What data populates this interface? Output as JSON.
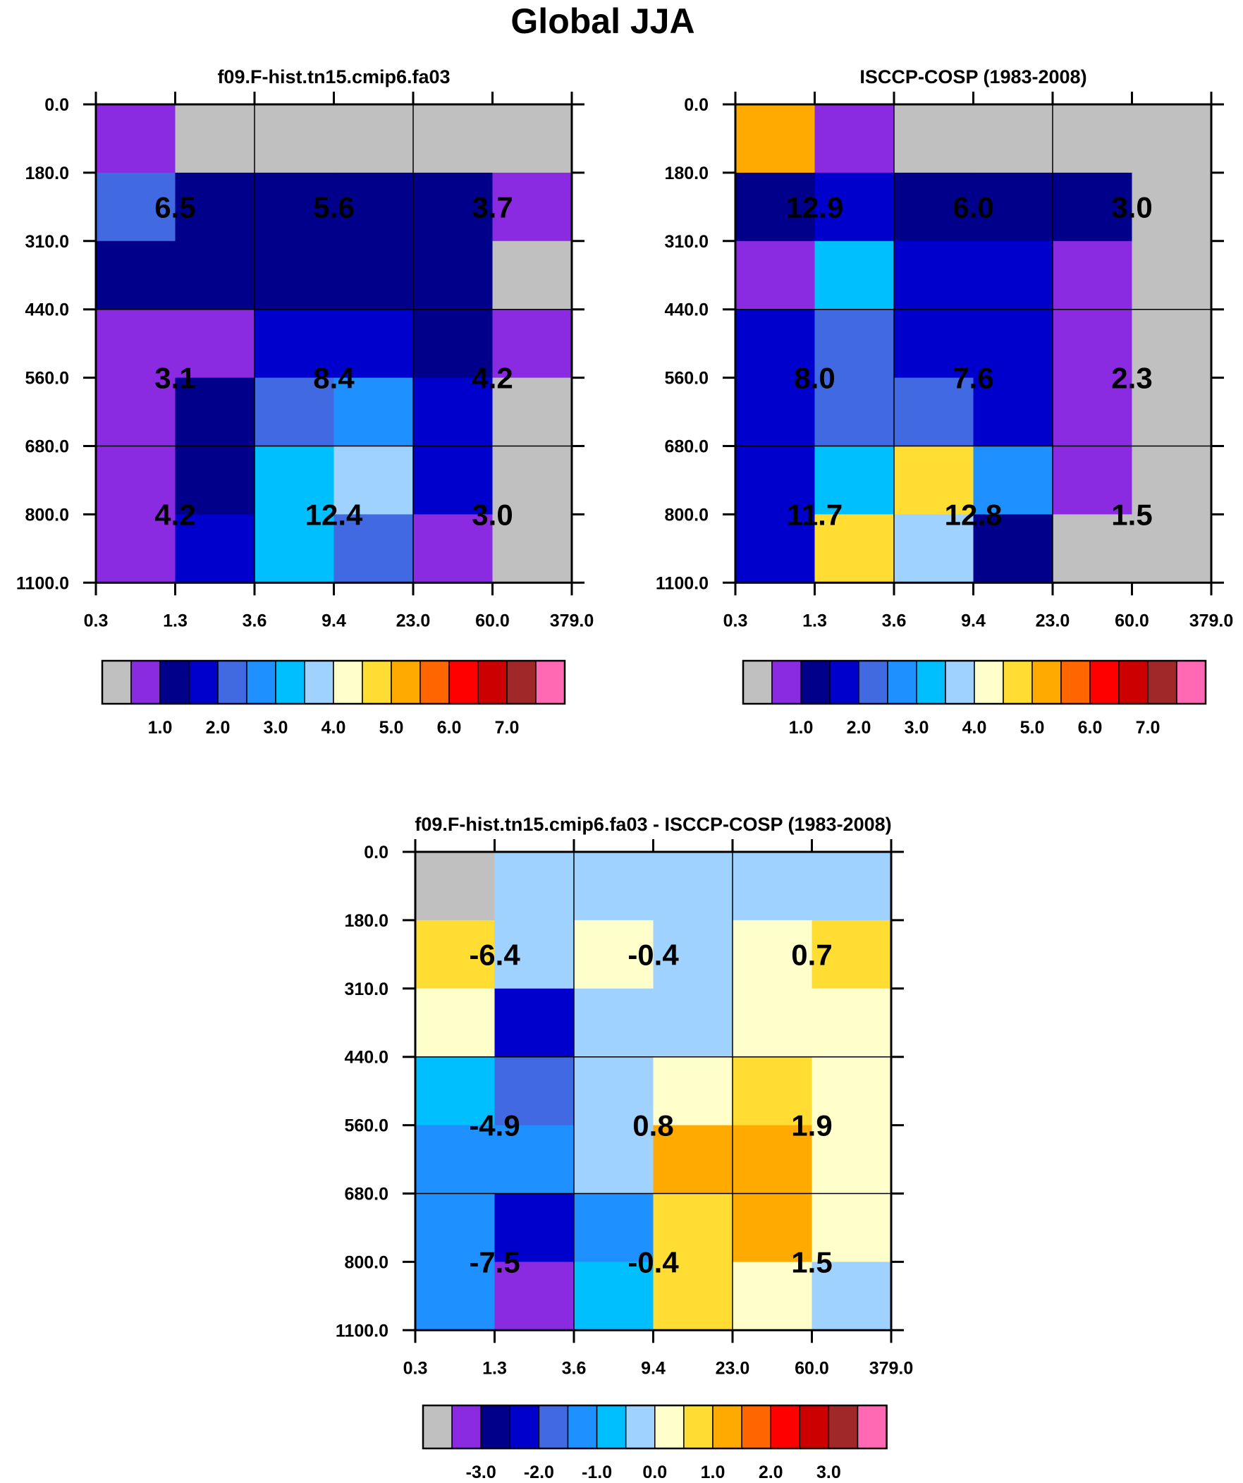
{
  "title": "Global JJA",
  "chart_data": [
    {
      "type": "heatmap",
      "title": "f09.F-hist.tn15.cmip6.fa03",
      "x_ticks": [
        "0.3",
        "1.3",
        "3.6",
        "9.4",
        "23.0",
        "60.0",
        "379.0"
      ],
      "y_ticks": [
        "0.0",
        "180.0",
        "310.0",
        "440.0",
        "560.0",
        "680.0",
        "800.0",
        "1100.0"
      ],
      "cells": [
        [
          1,
          0,
          0,
          0,
          0,
          0
        ],
        [
          4,
          2,
          2,
          2,
          2,
          1
        ],
        [
          2,
          2,
          2,
          2,
          2,
          0
        ],
        [
          1,
          1,
          3,
          3,
          2,
          1
        ],
        [
          1,
          2,
          4,
          5,
          3,
          0
        ],
        [
          1,
          2,
          6,
          7,
          3,
          0
        ],
        [
          1,
          3,
          6,
          4,
          1,
          0
        ]
      ],
      "block_values": [
        [
          "6.5",
          "5.6",
          "3.7"
        ],
        [
          "3.1",
          "8.4",
          "4.2"
        ],
        [
          "4.2",
          "12.4",
          "3.0"
        ]
      ],
      "colorbar_labels": [
        "1.0",
        "2.0",
        "3.0",
        "4.0",
        "5.0",
        "6.0",
        "7.0"
      ],
      "colorbar_colors": [
        "#c0c0c0",
        "#8a2be2",
        "#00008b",
        "#0000cd",
        "#4169e1",
        "#1e90ff",
        "#00bfff",
        "#a0d2ff",
        "#ffffcc",
        "#ffdd33",
        "#ffaa00",
        "#ff6600",
        "#ff0000",
        "#cc0000",
        "#a02828",
        "#ff69b4"
      ]
    },
    {
      "type": "heatmap",
      "title": "ISCCP-COSP (1983-2008)",
      "x_ticks": [
        "0.3",
        "1.3",
        "3.6",
        "9.4",
        "23.0",
        "60.0",
        "379.0"
      ],
      "y_ticks": [
        "0.0",
        "180.0",
        "310.0",
        "440.0",
        "560.0",
        "680.0",
        "800.0",
        "1100.0"
      ],
      "cells": [
        [
          10,
          1,
          0,
          0,
          0,
          0
        ],
        [
          2,
          3,
          2,
          2,
          2,
          0
        ],
        [
          1,
          6,
          3,
          3,
          1,
          0
        ],
        [
          3,
          4,
          3,
          3,
          1,
          0
        ],
        [
          3,
          4,
          4,
          3,
          1,
          0
        ],
        [
          3,
          6,
          9,
          5,
          1,
          0
        ],
        [
          3,
          9,
          7,
          2,
          0,
          0
        ]
      ],
      "block_values": [
        [
          "12.9",
          "6.0",
          "3.0"
        ],
        [
          "8.0",
          "7.6",
          "2.3"
        ],
        [
          "11.7",
          "12.8",
          "1.5"
        ]
      ],
      "colorbar_labels": [
        "1.0",
        "2.0",
        "3.0",
        "4.0",
        "5.0",
        "6.0",
        "7.0"
      ],
      "colorbar_colors": [
        "#c0c0c0",
        "#8a2be2",
        "#00008b",
        "#0000cd",
        "#4169e1",
        "#1e90ff",
        "#00bfff",
        "#a0d2ff",
        "#ffffcc",
        "#ffdd33",
        "#ffaa00",
        "#ff6600",
        "#ff0000",
        "#cc0000",
        "#a02828",
        "#ff69b4"
      ]
    },
    {
      "type": "heatmap",
      "title": "f09.F-hist.tn15.cmip6.fa03 - ISCCP-COSP (1983-2008)",
      "x_ticks": [
        "0.3",
        "1.3",
        "3.6",
        "9.4",
        "23.0",
        "60.0",
        "379.0"
      ],
      "y_ticks": [
        "0.0",
        "180.0",
        "310.0",
        "440.0",
        "560.0",
        "680.0",
        "800.0",
        "1100.0"
      ],
      "cells": [
        [
          0,
          7,
          7,
          7,
          7,
          7
        ],
        [
          9,
          7,
          8,
          7,
          8,
          9
        ],
        [
          8,
          3,
          7,
          7,
          8,
          8
        ],
        [
          6,
          4,
          7,
          8,
          9,
          8
        ],
        [
          5,
          5,
          7,
          10,
          10,
          8
        ],
        [
          5,
          3,
          5,
          9,
          10,
          8
        ],
        [
          5,
          1,
          6,
          9,
          8,
          7
        ]
      ],
      "block_values": [
        [
          "-6.4",
          "-0.4",
          "0.7"
        ],
        [
          "-4.9",
          "0.8",
          "1.9"
        ],
        [
          "-7.5",
          "-0.4",
          "1.5"
        ]
      ],
      "colorbar_labels": [
        "-3.0",
        "-2.0",
        "-1.0",
        "0.0",
        "1.0",
        "2.0",
        "3.0"
      ],
      "colorbar_colors": [
        "#c0c0c0",
        "#8a2be2",
        "#00008b",
        "#0000cd",
        "#4169e1",
        "#1e90ff",
        "#00bfff",
        "#a0d2ff",
        "#ffffcc",
        "#ffdd33",
        "#ffaa00",
        "#ff6600",
        "#ff0000",
        "#cc0000",
        "#a02828",
        "#ff69b4"
      ]
    }
  ]
}
